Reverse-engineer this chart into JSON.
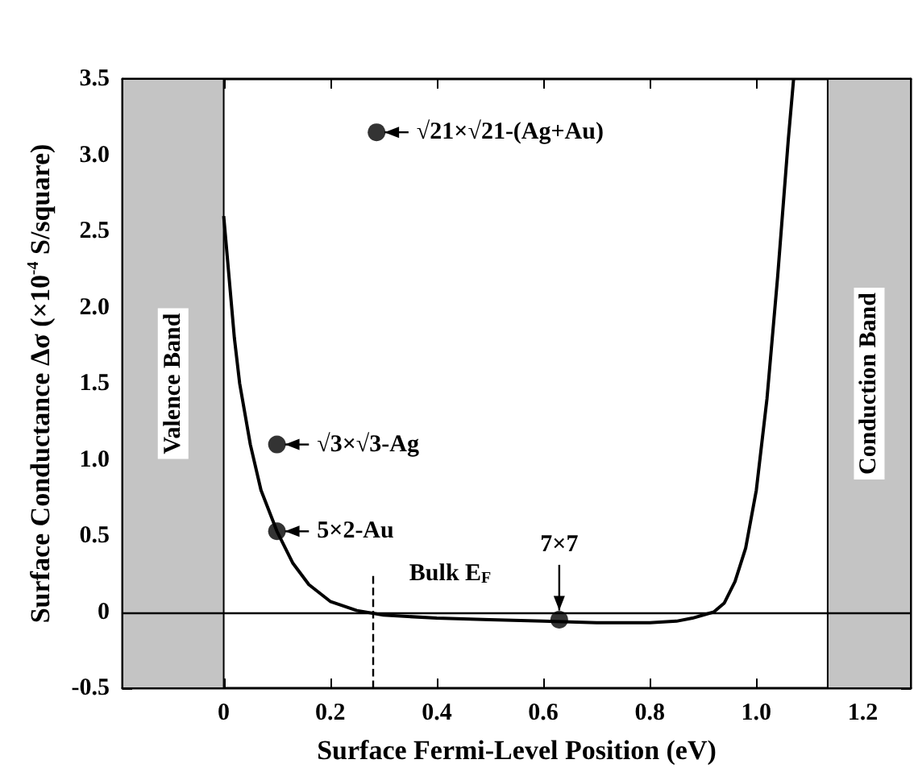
{
  "chart_data": {
    "type": "line",
    "xlabel": "Surface Fermi-Level Position (eV)",
    "ylabel": "Surface Conductance Δσ (×10$^{-4}$ S/square)",
    "xlim": [
      -0.19,
      1.29
    ],
    "xticks": [
      0,
      0.2,
      0.4,
      0.6,
      0.8,
      {
        "value": 1,
        "label": "1.0"
      },
      1.2
    ],
    "ylim": [
      -0.5,
      3.5
    ],
    "yticks": [
      -0.5,
      0,
      0.5,
      {
        "value": 1,
        "label": "1.0"
      },
      1.5,
      {
        "value": 2,
        "label": "2.0"
      },
      2.5,
      {
        "value": 3,
        "label": "3.0"
      },
      3.5
    ],
    "grid": false,
    "series": [
      {
        "type": "line",
        "color": "#000000",
        "marker": "none",
        "x": [
          0,
          0.01,
          0.02,
          0.03,
          0.05,
          0.07,
          0.1,
          0.13,
          0.16,
          0.2,
          0.25,
          0.3,
          0.4,
          0.5,
          0.6,
          0.7,
          0.8,
          0.85,
          0.88,
          0.9,
          0.92,
          0.94,
          0.96,
          0.98,
          1.0,
          1.02,
          1.04,
          1.06,
          1.07
        ],
        "values": [
          2.6,
          2.2,
          1.8,
          1.5,
          1.1,
          0.8,
          0.53,
          0.32,
          0.18,
          0.07,
          0.01,
          -0.02,
          -0.04,
          -0.05,
          -0.06,
          -0.07,
          -0.07,
          -0.06,
          -0.04,
          -0.02,
          0,
          0.06,
          0.2,
          0.42,
          0.8,
          1.4,
          2.2,
          3.1,
          3.5
        ]
      },
      {
        "type": "scatter",
        "color": "#000000",
        "marker": "circle",
        "x": [
          0.287,
          0.1,
          0.1,
          0.63
        ],
        "values": [
          3.15,
          1.1,
          0.53,
          -0.05
        ]
      }
    ],
    "ref_lines": [
      {
        "axis": "y",
        "value": 0,
        "color": "#000000",
        "line_style": "solid"
      },
      {
        "axis": "x",
        "value": 0.28,
        "label": "Bulk E$_{F}$",
        "color": "#000000",
        "line_style": "dashed"
      }
    ],
    "bands": [
      {
        "axis": "x",
        "from": -0.19,
        "to": 0,
        "label": "Valence Band",
        "color": "#c4c4c4"
      },
      {
        "axis": "x",
        "from": 1.134,
        "to": 1.29,
        "label": "Conduction Band",
        "color": "#c4c4c4"
      }
    ],
    "annotations": [
      {
        "text": "√21×√21-(Ag+Au)",
        "x": 0.287,
        "y": 3.15
      },
      {
        "text": "√3×√3-Ag",
        "x": 0.1,
        "y": 1.1
      },
      {
        "text": "5×2-Au",
        "x": 0.1,
        "y": 0.53
      },
      {
        "text": "7×7",
        "x": 0.63,
        "y": -0.05
      }
    ]
  }
}
